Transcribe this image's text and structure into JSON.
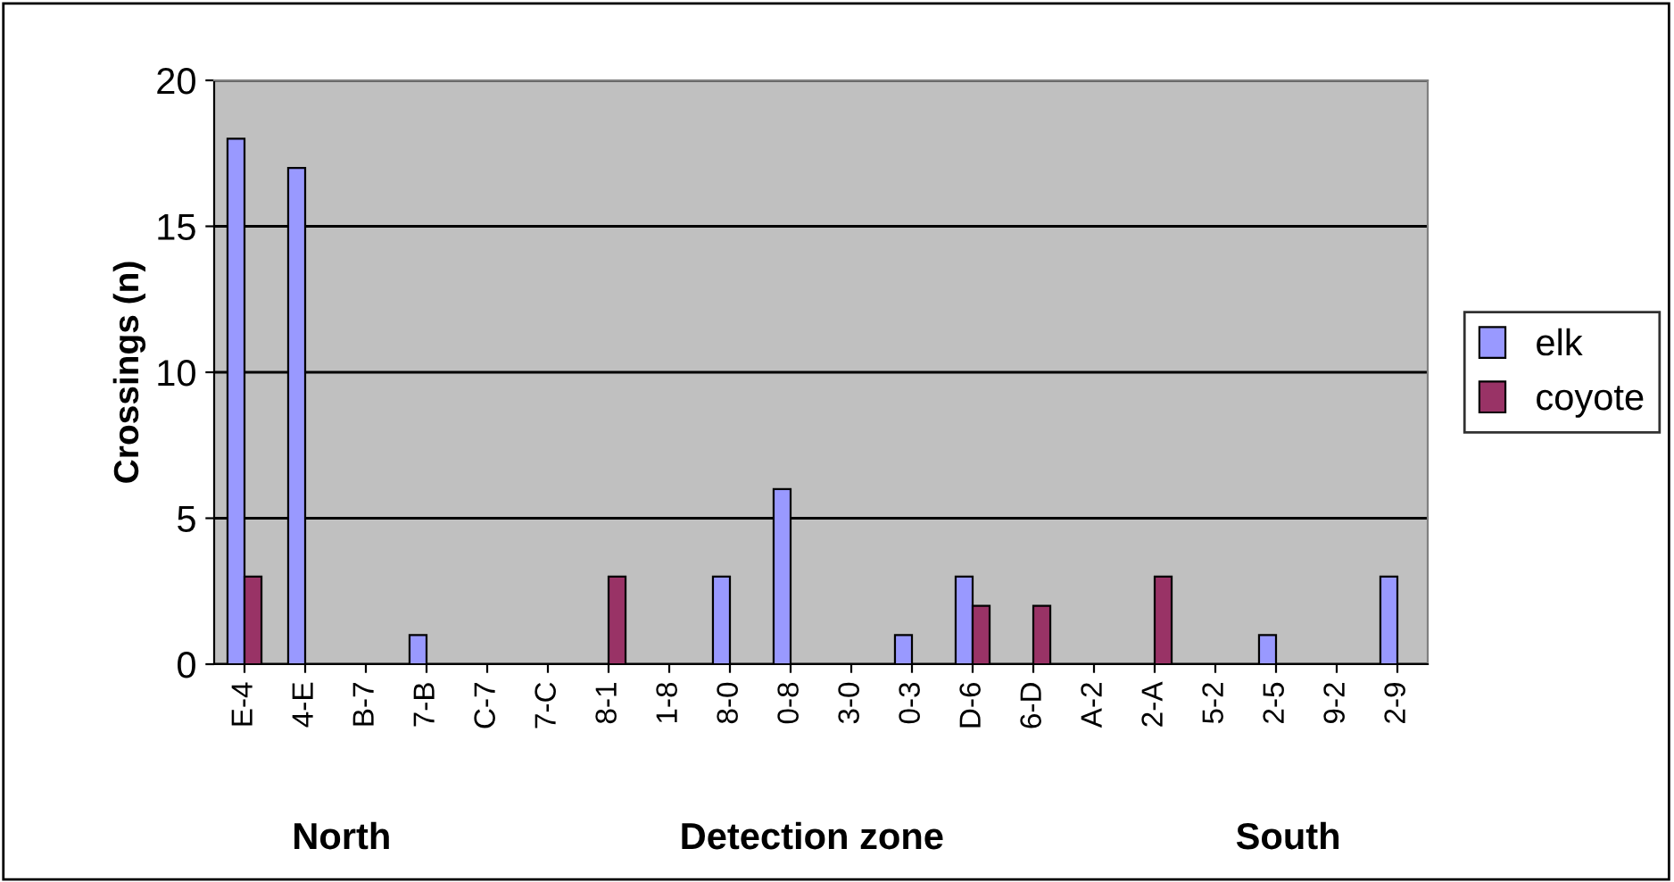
{
  "chart_data": {
    "type": "bar",
    "ylabel": "Crossings (n)",
    "categories": [
      "E-4",
      "4-E",
      "B-7",
      "7-B",
      "C-7",
      "7-C",
      "8-1",
      "1-8",
      "8-0",
      "0-8",
      "3-0",
      "0-3",
      "D-6",
      "6-D",
      "A-2",
      "2-A",
      "5-2",
      "2-5",
      "9-2",
      "2-9"
    ],
    "series": [
      {
        "name": "elk",
        "color": "#9999ff",
        "values": [
          18,
          17,
          0,
          1,
          0,
          0,
          0,
          0,
          3,
          6,
          0,
          1,
          3,
          0,
          0,
          0,
          0,
          1,
          0,
          3
        ]
      },
      {
        "name": "coyote",
        "color": "#993366",
        "values": [
          3,
          0,
          0,
          0,
          0,
          0,
          3,
          0,
          0,
          0,
          0,
          0,
          2,
          2,
          0,
          3,
          0,
          0,
          0,
          0
        ]
      }
    ],
    "ylim": [
      0,
      20
    ],
    "yticks": [
      0,
      5,
      10,
      15,
      20
    ],
    "grid": "y",
    "legend": "right",
    "annotations": [
      "North",
      "Detection zone",
      "South"
    ]
  }
}
